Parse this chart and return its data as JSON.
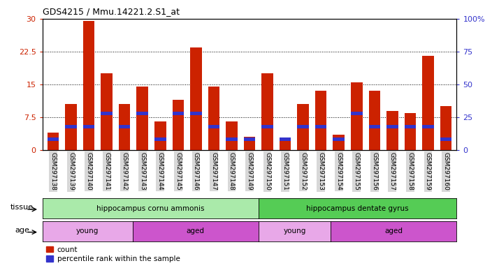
{
  "title": "GDS4215 / Mmu.14221.2.S1_at",
  "samples": [
    "GSM297138",
    "GSM297139",
    "GSM297140",
    "GSM297141",
    "GSM297142",
    "GSM297143",
    "GSM297144",
    "GSM297145",
    "GSM297146",
    "GSM297147",
    "GSM297148",
    "GSM297149",
    "GSM297150",
    "GSM297151",
    "GSM297152",
    "GSM297153",
    "GSM297154",
    "GSM297155",
    "GSM297156",
    "GSM297157",
    "GSM297158",
    "GSM297159",
    "GSM297160"
  ],
  "counts": [
    4.0,
    10.5,
    29.5,
    17.5,
    10.5,
    14.5,
    6.5,
    11.5,
    23.5,
    14.5,
    6.5,
    3.0,
    17.5,
    2.0,
    10.5,
    13.5,
    3.5,
    15.5,
    13.5,
    9.0,
    8.5,
    21.5,
    10.0
  ],
  "percentiles": [
    8.0,
    18.0,
    18.0,
    28.0,
    18.0,
    28.0,
    8.0,
    28.0,
    28.0,
    18.0,
    8.0,
    8.0,
    18.0,
    8.0,
    18.0,
    18.0,
    8.0,
    28.0,
    18.0,
    18.0,
    18.0,
    18.0,
    8.0
  ],
  "bar_color": "#cc2200",
  "pct_color": "#3333cc",
  "ylim_left": [
    0,
    30
  ],
  "ylim_right": [
    0,
    100
  ],
  "yticks_left": [
    0,
    7.5,
    15,
    22.5,
    30
  ],
  "yticks_right": [
    0,
    25,
    50,
    75,
    100
  ],
  "ytick_labels_left": [
    "0",
    "7.5",
    "15",
    "22.5",
    "30"
  ],
  "ytick_labels_right": [
    "0",
    "25",
    "50",
    "75",
    "100%"
  ],
  "tissue_groups": [
    {
      "label": "hippocampus cornu ammonis",
      "start": 0,
      "end": 12,
      "color": "#aaeaaa"
    },
    {
      "label": "hippocampus dentate gyrus",
      "start": 12,
      "end": 23,
      "color": "#55cc55"
    }
  ],
  "age_groups": [
    {
      "label": "young",
      "start": 0,
      "end": 5,
      "color": "#e8a8e8"
    },
    {
      "label": "aged",
      "start": 5,
      "end": 12,
      "color": "#cc55cc"
    },
    {
      "label": "young",
      "start": 12,
      "end": 16,
      "color": "#e8a8e8"
    },
    {
      "label": "aged",
      "start": 16,
      "end": 23,
      "color": "#cc55cc"
    }
  ],
  "bg_color": "#ffffff",
  "tick_label_bg": "#d8d8d8"
}
